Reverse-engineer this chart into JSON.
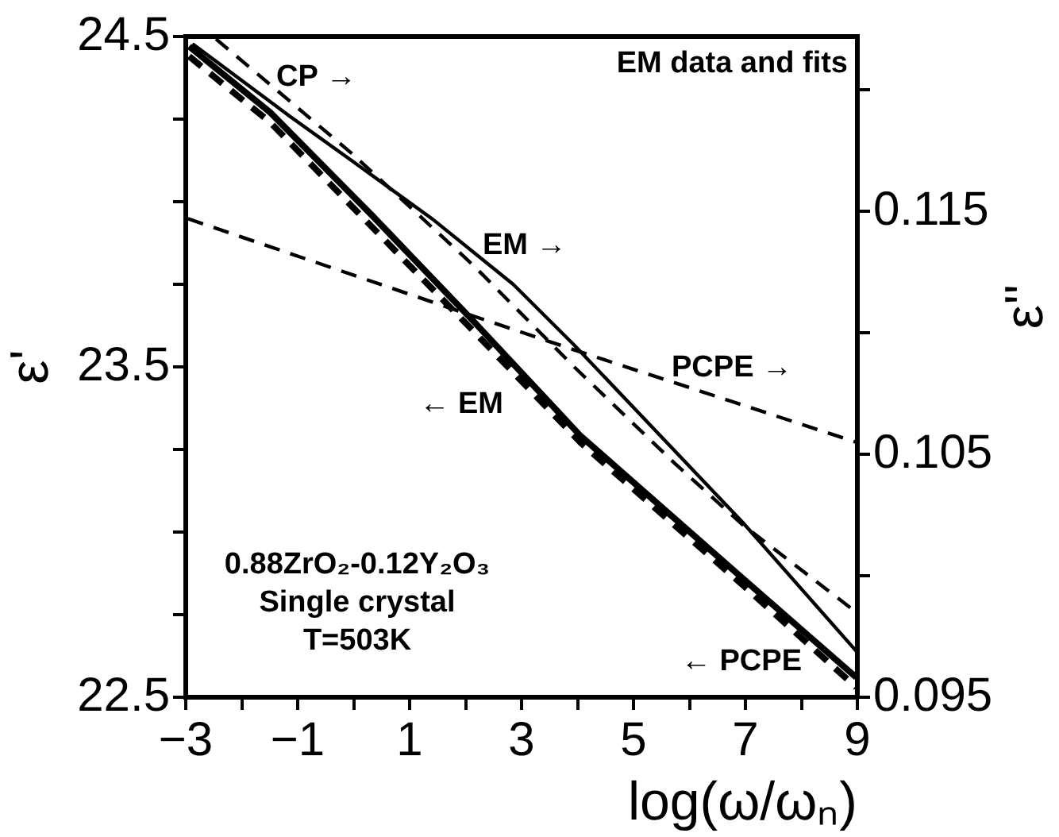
{
  "chart_data": {
    "type": "line",
    "xlabel": "log(ω/ωₙ)",
    "ylabel": "ε'",
    "y2label": "ε''",
    "xlim": [
      -3,
      9
    ],
    "xticks": [
      {
        "value": -3,
        "label": "−3"
      },
      {
        "value": -2,
        "label": null
      },
      {
        "value": -1,
        "label": "−1"
      },
      {
        "value": 0,
        "label": null
      },
      1,
      {
        "value": 2,
        "label": null
      },
      3,
      {
        "value": 4,
        "label": null
      },
      5,
      {
        "value": 6,
        "label": null
      },
      7,
      {
        "value": 8,
        "label": null
      },
      9
    ],
    "ylim": [
      22.5,
      24.5
    ],
    "yticks": [
      22.5,
      {
        "value": 22.75,
        "label": null
      },
      {
        "value": 23,
        "label": null
      },
      {
        "value": 23.25,
        "label": null
      },
      23.5,
      {
        "value": 23.75,
        "label": null
      },
      {
        "value": 24,
        "label": null
      },
      {
        "value": 24.25,
        "label": null
      },
      24.5
    ],
    "y2lim": [
      0.095,
      0.1222
    ],
    "y2ticks": [
      0.095,
      {
        "value": 0.1,
        "label": null
      },
      0.105,
      {
        "value": 0.11,
        "label": null
      },
      0.115,
      {
        "value": 0.12,
        "label": null
      }
    ],
    "grid": false,
    "legend": false,
    "marker": "none",
    "series": [
      {
        "color": "#000000",
        "line_style": "solid",
        "x": [
          -2.94,
          -1.49,
          0.32,
          2.13,
          4.06,
          6.95,
          8.98
        ],
        "values": [
          24.47,
          24.27,
          23.96,
          23.64,
          23.29,
          22.86,
          22.56
        ]
      },
      {
        "color": "#000000",
        "line_style": "dashed",
        "x": [
          -2.94,
          -1.49,
          2.13,
          4.06,
          6.95,
          8.98
        ],
        "values": [
          24.44,
          24.24,
          23.61,
          23.27,
          22.84,
          22.53
        ]
      },
      {
        "color": "#000000",
        "line_style": "solid",
        "axis": "y2",
        "x": [
          -2.88,
          -1.13,
          -0.04,
          1.4,
          2.85,
          3.94,
          6.95,
          8.98
        ],
        "values": [
          0.1219,
          0.1189,
          0.1171,
          0.1147,
          0.112,
          0.1095,
          0.1022,
          0.0969
        ]
      },
      {
        "color": "#000000",
        "line_style": "dashed",
        "axis": "y2",
        "x": [
          -2.46,
          -0.04,
          2.13,
          3.94,
          5.75,
          6.95,
          8.98
        ],
        "values": [
          0.1221,
          0.1174,
          0.1128,
          0.1086,
          0.1046,
          0.1021,
          0.0985
        ]
      },
      {
        "color": "#000000",
        "line_style": "dashed",
        "axis": "y2",
        "x": [
          -2.96,
          2.13,
          3.94,
          8.98
        ],
        "values": [
          0.1147,
          0.1107,
          0.1093,
          0.1055
        ]
      }
    ],
    "annotations": [
      "EM data and fits",
      "0.88ZrO₂-0.12Y₂O₃",
      "Single crystal",
      "T=503K",
      "CP →",
      "EM →",
      "PCPE →",
      "← EM",
      "← PCPE"
    ]
  }
}
